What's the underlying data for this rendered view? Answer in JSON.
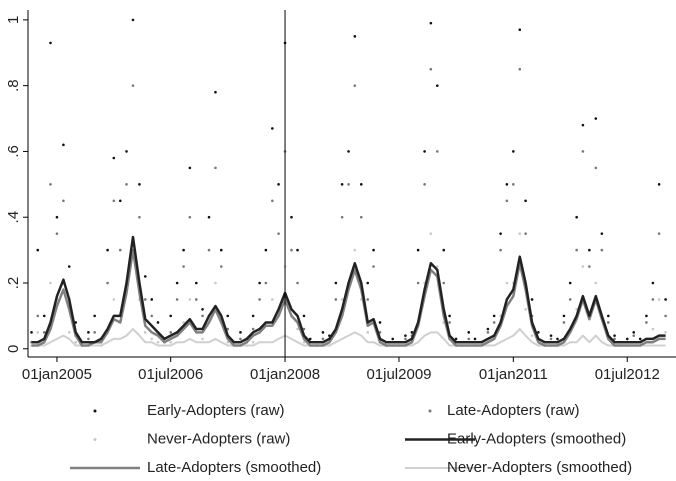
{
  "chart_data": {
    "type": "line",
    "x": [
      "2004-09-01",
      "2004-10-01",
      "2004-11-01",
      "2004-12-01",
      "2005-01-01",
      "2005-02-01",
      "2005-03-01",
      "2005-04-01",
      "2005-05-01",
      "2005-06-01",
      "2005-07-01",
      "2005-08-01",
      "2005-09-01",
      "2005-10-01",
      "2005-11-01",
      "2005-12-01",
      "2006-01-01",
      "2006-02-01",
      "2006-03-01",
      "2006-04-01",
      "2006-05-01",
      "2006-06-01",
      "2006-07-01",
      "2006-08-01",
      "2006-09-01",
      "2006-10-01",
      "2006-11-01",
      "2006-12-01",
      "2007-01-01",
      "2007-02-01",
      "2007-03-01",
      "2007-04-01",
      "2007-05-01",
      "2007-06-01",
      "2007-07-01",
      "2007-08-01",
      "2007-09-01",
      "2007-10-01",
      "2007-11-01",
      "2007-12-01",
      "2008-01-01",
      "2008-02-01",
      "2008-03-01",
      "2008-04-01",
      "2008-05-01",
      "2008-06-01",
      "2008-07-01",
      "2008-08-01",
      "2008-09-01",
      "2008-10-01",
      "2008-11-01",
      "2008-12-01",
      "2009-01-01",
      "2009-02-01",
      "2009-03-01",
      "2009-04-01",
      "2009-05-01",
      "2009-06-01",
      "2009-07-01",
      "2009-08-01",
      "2009-09-01",
      "2009-10-01",
      "2009-11-01",
      "2009-12-01",
      "2010-01-01",
      "2010-02-01",
      "2010-03-01",
      "2010-04-01",
      "2010-05-01",
      "2010-06-01",
      "2010-07-01",
      "2010-08-01",
      "2010-09-01",
      "2010-10-01",
      "2010-11-01",
      "2010-12-01",
      "2011-01-01",
      "2011-02-01",
      "2011-03-01",
      "2011-04-01",
      "2011-05-01",
      "2011-06-01",
      "2011-07-01",
      "2011-08-01",
      "2011-09-01",
      "2011-10-01",
      "2011-11-01",
      "2011-12-01",
      "2012-01-01",
      "2012-02-01",
      "2012-03-01",
      "2012-04-01",
      "2012-05-01",
      "2012-06-01",
      "2012-07-01",
      "2012-08-01",
      "2012-09-01",
      "2012-10-01",
      "2012-11-01",
      "2012-12-01",
      "2013-01-01"
    ],
    "series": [
      {
        "name": "Early-Adopters (raw)",
        "style": "dots",
        "color": "#111111",
        "values": [
          0.05,
          0.3,
          0.1,
          0.93,
          0.4,
          0.62,
          0.25,
          0.08,
          0.02,
          0.05,
          0.1,
          0.03,
          0.3,
          0.58,
          0.45,
          0.6,
          1,
          0.5,
          0.22,
          0.15,
          0.08,
          0.03,
          0.1,
          0.2,
          0.3,
          0.55,
          0.2,
          0.12,
          0.4,
          0.78,
          0.3,
          0.1,
          0.02,
          0.05,
          0.02,
          0.1,
          0.2,
          0.3,
          0.67,
          0.5,
          0.93,
          0.4,
          0.3,
          0.1,
          0.03,
          0.02,
          0.05,
          0.04,
          0.2,
          0.5,
          0.6,
          0.95,
          0.5,
          0.2,
          0.3,
          0.08,
          0.02,
          0.03,
          0.02,
          0.04,
          0.05,
          0.3,
          0.6,
          0.99,
          0.8,
          0.3,
          0.1,
          0.03,
          0.02,
          0.05,
          0.03,
          0.02,
          0.06,
          0.1,
          0.35,
          0.5,
          0.6,
          0.97,
          0.45,
          0.15,
          0.05,
          0.02,
          0.04,
          0.03,
          0.1,
          0.2,
          0.4,
          0.68,
          0.3,
          0.7,
          0.35,
          0.1,
          0.04,
          0.02,
          0.03,
          0.05,
          0.03,
          0.1,
          0.2,
          0.5,
          0.15
        ]
      },
      {
        "name": "Late-Adopters (raw)",
        "style": "dots",
        "color": "#777777",
        "values": [
          0.02,
          0.1,
          0.05,
          0.5,
          0.35,
          0.45,
          0.15,
          0.04,
          0.01,
          0.03,
          0.05,
          0.02,
          0.2,
          0.45,
          0.3,
          0.5,
          0.8,
          0.4,
          0.15,
          0.1,
          0.05,
          0.02,
          0.05,
          0.15,
          0.25,
          0.4,
          0.15,
          0.1,
          0.3,
          0.55,
          0.25,
          0.06,
          0.02,
          0.03,
          0.02,
          0.06,
          0.15,
          0.2,
          0.45,
          0.35,
          0.6,
          0.3,
          0.2,
          0.06,
          0.02,
          0.01,
          0.03,
          0.03,
          0.15,
          0.4,
          0.5,
          0.8,
          0.4,
          0.15,
          0.25,
          0.05,
          0.01,
          0.02,
          0.02,
          0.03,
          0.04,
          0.2,
          0.5,
          0.85,
          0.6,
          0.2,
          0.08,
          0.02,
          0.01,
          0.03,
          0.02,
          0.02,
          0.05,
          0.08,
          0.3,
          0.45,
          0.5,
          0.85,
          0.35,
          0.1,
          0.03,
          0.02,
          0.03,
          0.02,
          0.08,
          0.15,
          0.3,
          0.6,
          0.25,
          0.55,
          0.3,
          0.08,
          0.03,
          0.02,
          0.02,
          0.04,
          0.02,
          0.08,
          0.15,
          0.35,
          0.1
        ]
      },
      {
        "name": "Never-Adopters (raw)",
        "style": "dots",
        "color": "#c8c8c8",
        "values": [
          0.01,
          0.05,
          0.02,
          0.2,
          0.15,
          0.2,
          0.05,
          0.02,
          0.01,
          0.01,
          0.02,
          0.01,
          0.05,
          0.15,
          0.1,
          0.2,
          0.3,
          0.15,
          0.05,
          0.03,
          0.02,
          0.01,
          0.02,
          0.05,
          0.08,
          0.15,
          0.05,
          0.03,
          0.1,
          0.2,
          0.08,
          0.02,
          0.01,
          0.01,
          0.01,
          0.02,
          0.05,
          0.08,
          0.15,
          0.1,
          0.25,
          0.1,
          0.06,
          0.02,
          0.01,
          0.01,
          0.01,
          0.01,
          0.05,
          0.15,
          0.2,
          0.3,
          0.15,
          0.05,
          0.08,
          0.02,
          0.01,
          0.01,
          0.01,
          0.01,
          0.02,
          0.08,
          0.2,
          0.35,
          0.25,
          0.08,
          0.03,
          0.01,
          0.01,
          0.01,
          0.01,
          0.01,
          0.02,
          0.03,
          0.1,
          0.2,
          0.2,
          0.35,
          0.12,
          0.04,
          0.01,
          0.01,
          0.01,
          0.01,
          0.03,
          0.06,
          0.12,
          0.25,
          0.1,
          0.2,
          0.1,
          0.03,
          0.01,
          0.01,
          0.01,
          0.02,
          0.01,
          0.03,
          0.06,
          0.15,
          0.05
        ]
      },
      {
        "name": "Early-Adopters (smoothed)",
        "style": "line",
        "color": "#222222",
        "width": 2.5,
        "values": [
          0.02,
          0.02,
          0.03,
          0.08,
          0.16,
          0.21,
          0.15,
          0.05,
          0.02,
          0.02,
          0.02,
          0.03,
          0.06,
          0.1,
          0.1,
          0.2,
          0.34,
          0.2,
          0.09,
          0.07,
          0.05,
          0.03,
          0.04,
          0.05,
          0.07,
          0.09,
          0.06,
          0.06,
          0.1,
          0.13,
          0.1,
          0.04,
          0.02,
          0.02,
          0.03,
          0.05,
          0.06,
          0.08,
          0.08,
          0.12,
          0.17,
          0.12,
          0.1,
          0.04,
          0.02,
          0.02,
          0.02,
          0.03,
          0.06,
          0.12,
          0.2,
          0.26,
          0.2,
          0.08,
          0.09,
          0.03,
          0.02,
          0.02,
          0.02,
          0.02,
          0.03,
          0.08,
          0.18,
          0.26,
          0.24,
          0.12,
          0.04,
          0.02,
          0.02,
          0.02,
          0.02,
          0.02,
          0.03,
          0.04,
          0.08,
          0.15,
          0.18,
          0.28,
          0.2,
          0.08,
          0.03,
          0.02,
          0.02,
          0.02,
          0.03,
          0.06,
          0.1,
          0.16,
          0.1,
          0.16,
          0.1,
          0.04,
          0.02,
          0.02,
          0.02,
          0.02,
          0.02,
          0.03,
          0.03,
          0.04,
          0.04
        ]
      },
      {
        "name": "Late-Adopters (smoothed)",
        "style": "line",
        "color": "#808080",
        "width": 2.5,
        "values": [
          0.01,
          0.01,
          0.02,
          0.06,
          0.13,
          0.18,
          0.12,
          0.04,
          0.01,
          0.01,
          0.02,
          0.02,
          0.05,
          0.09,
          0.08,
          0.17,
          0.3,
          0.17,
          0.07,
          0.05,
          0.04,
          0.02,
          0.03,
          0.04,
          0.06,
          0.08,
          0.05,
          0.05,
          0.08,
          0.12,
          0.08,
          0.03,
          0.01,
          0.01,
          0.02,
          0.04,
          0.05,
          0.07,
          0.07,
          0.1,
          0.15,
          0.1,
          0.08,
          0.03,
          0.01,
          0.01,
          0.01,
          0.02,
          0.05,
          0.1,
          0.18,
          0.24,
          0.18,
          0.07,
          0.08,
          0.02,
          0.01,
          0.01,
          0.01,
          0.01,
          0.02,
          0.07,
          0.16,
          0.24,
          0.22,
          0.1,
          0.03,
          0.01,
          0.01,
          0.01,
          0.01,
          0.01,
          0.02,
          0.03,
          0.07,
          0.13,
          0.16,
          0.26,
          0.18,
          0.07,
          0.02,
          0.01,
          0.01,
          0.01,
          0.02,
          0.05,
          0.09,
          0.15,
          0.09,
          0.15,
          0.09,
          0.03,
          0.01,
          0.01,
          0.01,
          0.01,
          0.01,
          0.02,
          0.02,
          0.03,
          0.03
        ]
      },
      {
        "name": "Never-Adopters (smoothed)",
        "style": "line",
        "color": "#d0d0d0",
        "width": 2,
        "values": [
          0.01,
          0.01,
          0.01,
          0.02,
          0.03,
          0.04,
          0.03,
          0.01,
          0.01,
          0.01,
          0.01,
          0.01,
          0.02,
          0.03,
          0.03,
          0.04,
          0.06,
          0.04,
          0.02,
          0.02,
          0.01,
          0.01,
          0.01,
          0.02,
          0.02,
          0.03,
          0.02,
          0.02,
          0.02,
          0.03,
          0.02,
          0.01,
          0.01,
          0.01,
          0.01,
          0.01,
          0.02,
          0.02,
          0.02,
          0.03,
          0.04,
          0.03,
          0.02,
          0.01,
          0.01,
          0.01,
          0.01,
          0.01,
          0.02,
          0.03,
          0.04,
          0.05,
          0.04,
          0.02,
          0.02,
          0.01,
          0.01,
          0.01,
          0.01,
          0.01,
          0.01,
          0.02,
          0.04,
          0.05,
          0.05,
          0.03,
          0.01,
          0.01,
          0.01,
          0.01,
          0.01,
          0.01,
          0.01,
          0.01,
          0.02,
          0.03,
          0.04,
          0.06,
          0.04,
          0.02,
          0.01,
          0.01,
          0.01,
          0.01,
          0.01,
          0.02,
          0.02,
          0.04,
          0.02,
          0.04,
          0.02,
          0.01,
          0.01,
          0.01,
          0.01,
          0.01,
          0.01,
          0.01,
          0.01,
          0.01,
          0.01
        ]
      }
    ],
    "xlim": [
      "2004-08-15",
      "2013-02-20"
    ],
    "xticks": [
      {
        "value": "2005-01-01",
        "label": "01jan2005"
      },
      {
        "value": "2006-07-01",
        "label": "01jul2006"
      },
      {
        "value": "2008-01-01",
        "label": "01jan2008"
      },
      {
        "value": "2009-07-01",
        "label": "01jul2009"
      },
      {
        "value": "2011-01-01",
        "label": "01jan2011"
      },
      {
        "value": "2012-07-01",
        "label": "01jul2012"
      }
    ],
    "ylim": [
      -0.025,
      1.03
    ],
    "yticks": [
      0,
      {
        "value": 0.2,
        "label": ".2"
      },
      {
        "value": 0.4,
        "label": ".4"
      },
      {
        "value": 0.6,
        "label": ".6"
      },
      {
        "value": 0.8,
        "label": ".8"
      },
      1
    ],
    "vline": "2008-01-01",
    "legend": "bottom"
  }
}
